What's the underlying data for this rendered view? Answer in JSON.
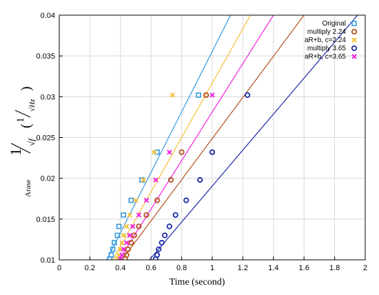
{
  "chart_data": {
    "type": "scatter",
    "xlabel": "Time (second)",
    "ylabel": {
      "prefix": "Arase",
      "main_num": "1",
      "main_den": "√f",
      "unit_open": "(",
      "unit_num": "1",
      "unit_den": "√Hz",
      "unit_close": ")"
    },
    "xlim": [
      0,
      2
    ],
    "ylim": [
      0.01,
      0.04
    ],
    "xticks": [
      "0",
      "0.2",
      "0.4",
      "0.6",
      "0.8",
      "1",
      "1.2",
      "1.4",
      "1.6",
      "1.8",
      "2"
    ],
    "yticks": [
      "0.01",
      "0.015",
      "0.02",
      "0.025",
      "0.03",
      "0.035",
      "0.04"
    ],
    "grid": true,
    "legend_position": "top-right",
    "colors": {
      "original": "#3399dd",
      "multiply_224": "#b5501a",
      "arb_224": "#f5c033",
      "multiply_365": "#1a2aa8",
      "arb_365": "#ee22dd"
    },
    "series": [
      {
        "name": "Original",
        "marker": "square-open",
        "color": "#3399dd",
        "x": [
          0.33,
          0.34,
          0.35,
          0.36,
          0.38,
          0.39,
          0.42,
          0.47,
          0.54,
          0.64,
          0.91
        ],
        "y": [
          0.0101,
          0.0106,
          0.0113,
          0.0121,
          0.013,
          0.0141,
          0.0155,
          0.0173,
          0.0198,
          0.0232,
          0.0302
        ]
      },
      {
        "name": "multiply 2.24",
        "marker": "circle-open",
        "color": "#b5501a",
        "x": [
          0.43,
          0.44,
          0.45,
          0.47,
          0.49,
          0.52,
          0.57,
          0.64,
          0.73,
          0.8,
          0.96
        ],
        "y": [
          0.0101,
          0.0106,
          0.0113,
          0.0121,
          0.013,
          0.0141,
          0.0155,
          0.0173,
          0.0198,
          0.0232,
          0.0302
        ]
      },
      {
        "name": "aR+b, c=2.24",
        "marker": "x",
        "color": "#f5c033",
        "x": [
          0.38,
          0.39,
          0.4,
          0.41,
          0.42,
          0.44,
          0.46,
          0.5,
          0.55,
          0.62,
          0.74
        ],
        "y": [
          0.0101,
          0.0106,
          0.0113,
          0.0121,
          0.013,
          0.0141,
          0.0155,
          0.0173,
          0.0198,
          0.0232,
          0.0302
        ]
      },
      {
        "name": "multiply 3.65",
        "marker": "circle-open",
        "color": "#1a2aa8",
        "x": [
          0.63,
          0.64,
          0.65,
          0.67,
          0.69,
          0.72,
          0.76,
          0.83,
          0.92,
          1.0,
          1.23
        ],
        "y": [
          0.0101,
          0.0106,
          0.0113,
          0.0121,
          0.013,
          0.0141,
          0.0155,
          0.0173,
          0.0198,
          0.0232,
          0.0302
        ]
      },
      {
        "name": "aR+b, c=3.65",
        "marker": "x",
        "color": "#ee22dd",
        "x": [
          0.4,
          0.41,
          0.42,
          0.44,
          0.46,
          0.48,
          0.52,
          0.57,
          0.63,
          0.72,
          1.0
        ],
        "y": [
          0.0101,
          0.0106,
          0.0113,
          0.0121,
          0.013,
          0.0141,
          0.0155,
          0.0173,
          0.0198,
          0.0232,
          0.0302
        ]
      }
    ],
    "fit_lines": [
      {
        "series": "Original",
        "color": "#3399dd",
        "from": [
          0.31,
          0.01
        ],
        "to": [
          1.12,
          0.04
        ]
      },
      {
        "series": "aR+b, c=2.24",
        "color": "#f5c033",
        "from": [
          0.35,
          0.01
        ],
        "to": [
          1.25,
          0.04
        ]
      },
      {
        "series": "aR+b, c=3.65",
        "color": "#ee22dd",
        "from": [
          0.39,
          0.01
        ],
        "to": [
          1.4,
          0.04
        ]
      },
      {
        "series": "multiply 2.24",
        "color": "#b5501a",
        "from": [
          0.41,
          0.01
        ],
        "to": [
          1.6,
          0.04
        ]
      },
      {
        "series": "multiply 3.65",
        "color": "#1a2aa8",
        "from": [
          0.59,
          0.01
        ],
        "to": [
          1.95,
          0.04
        ]
      }
    ]
  }
}
